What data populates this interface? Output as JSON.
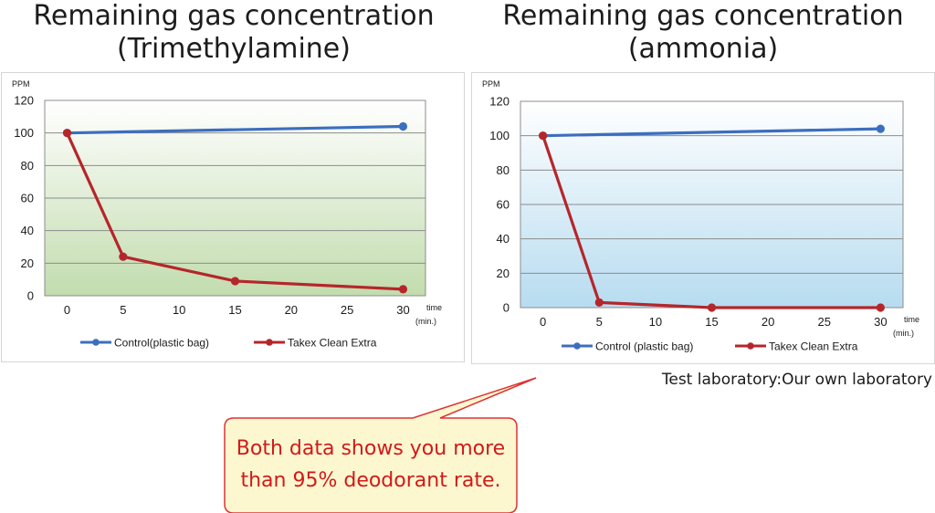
{
  "titles": {
    "left": [
      "Remaining gas concentration",
      "(Trimethylamine)"
    ],
    "right": [
      "Remaining gas concentration",
      "(ammonia)"
    ]
  },
  "caption": "Test laboratory:Our own laboratory",
  "callout": {
    "lines": [
      "Both data shows you more",
      "than 95% deodorant rate."
    ],
    "text_color": "#d11a1a",
    "fill_color": "#fdf7d0",
    "border_color": "#d33"
  },
  "chart_data": [
    {
      "type": "line",
      "title": "Remaining gas concentration (Trimethylamine)",
      "ylabel": "PPM",
      "xlabel": [
        "time",
        "(min.)"
      ],
      "ylim": [
        0,
        120
      ],
      "yticks": [
        0,
        20,
        40,
        60,
        80,
        100,
        120
      ],
      "xlim": [
        -2,
        32
      ],
      "xticks": [
        0,
        5,
        10,
        15,
        20,
        25,
        30
      ],
      "grid": true,
      "legend_position": "bottom",
      "background_gradient": [
        "#ffffff",
        "#c2dcae"
      ],
      "series": [
        {
          "name": "Control(plastic bag)",
          "color": "#3c6ebf",
          "x": [
            0,
            30
          ],
          "y": [
            100,
            104
          ]
        },
        {
          "name": "Takex Clean Extra",
          "color": "#b5262b",
          "x": [
            0,
            5,
            15,
            30
          ],
          "y": [
            100,
            24,
            9,
            4
          ]
        }
      ]
    },
    {
      "type": "line",
      "title": "Remaining gas concentration (ammonia)",
      "ylabel": "PPM",
      "xlabel": [
        "time",
        "(min.)"
      ],
      "ylim": [
        0,
        120
      ],
      "yticks": [
        0,
        20,
        40,
        60,
        80,
        100,
        120
      ],
      "xlim": [
        -2,
        32
      ],
      "xticks": [
        0,
        5,
        10,
        15,
        20,
        25,
        30
      ],
      "grid": true,
      "legend_position": "bottom",
      "background_gradient": [
        "#ffffff",
        "#b7dcf0"
      ],
      "series": [
        {
          "name": "Control (plastic bag)",
          "color": "#3c6ebf",
          "x": [
            0,
            30
          ],
          "y": [
            100,
            104
          ]
        },
        {
          "name": "Takex Clean Extra",
          "color": "#b5262b",
          "x": [
            0,
            5,
            15,
            30
          ],
          "y": [
            100,
            3,
            0,
            0
          ]
        }
      ]
    }
  ]
}
